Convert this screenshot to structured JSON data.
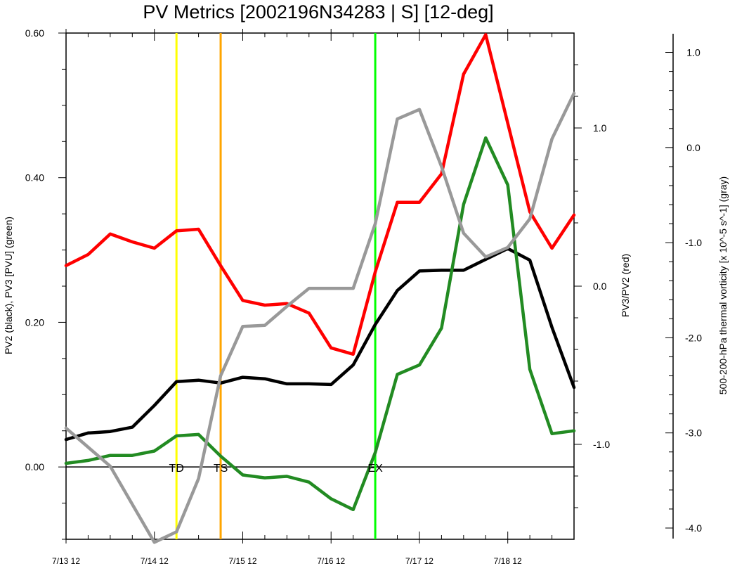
{
  "chart_data": {
    "type": "line",
    "title": "PV Metrics [2002196N34283 | S] [12-deg]",
    "xlabel": "",
    "ylabel_left": "PV2 (black), PV3 [PVU] (green)",
    "ylabel_right1": "PV3/PV2 (red)",
    "ylabel_right2": "500-200-hPa thermal vorticity [x 10^-5 s^-1] (gray)",
    "x_tick_labels": [
      "7/13 12",
      "7/14 12",
      "7/15 12",
      "7/16 12",
      "7/17 12",
      "7/18 12"
    ],
    "x_tick_positions": [
      0,
      4,
      8,
      12,
      16,
      20
    ],
    "xlim": [
      0,
      23
    ],
    "ylim_left": [
      -0.1,
      0.6
    ],
    "y_tick_labels_left": [
      "0.00",
      "0.20",
      "0.40",
      "0.60"
    ],
    "y_ticks_left": [
      0.0,
      0.2,
      0.4,
      0.6
    ],
    "ylim_right1": [
      -1.6,
      1.6
    ],
    "y_tick_labels_right1": [
      "-1.0",
      "0.0",
      "1.0"
    ],
    "y_ticks_right1": [
      -1.0,
      0.0,
      1.0
    ],
    "ylim_right2": [
      -4.0,
      1.1
    ],
    "y_tick_labels_right2": [
      "-4.0",
      "-3.0",
      "-2.0",
      "-1.0",
      "0.0",
      "1.0"
    ],
    "y_ticks_right2": [
      -4.0,
      -3.0,
      -2.0,
      -1.0,
      0.0,
      1.0
    ],
    "events": [
      {
        "label": "TD",
        "x": 5,
        "color": "#ffff00"
      },
      {
        "label": "TS",
        "x": 7,
        "color": "#ffa500"
      },
      {
        "label": "EX",
        "x": 14,
        "color": "#00ff00"
      }
    ],
    "x": [
      0,
      1,
      2,
      3,
      4,
      5,
      6,
      7,
      8,
      9,
      10,
      11,
      12,
      13,
      14,
      15,
      16,
      17,
      18,
      19,
      20,
      21,
      22,
      23
    ],
    "series": [
      {
        "axis": "left",
        "color": "#000000",
        "values": [
          0.038,
          0.047,
          0.049,
          0.055,
          0.085,
          0.118,
          0.12,
          0.116,
          0.124,
          0.122,
          0.115,
          0.115,
          0.114,
          0.141,
          0.197,
          0.244,
          0.271,
          0.272,
          0.272,
          0.287,
          0.302,
          0.286,
          0.193,
          0.11
        ]
      },
      {
        "axis": "left",
        "color": "#228b22",
        "values": [
          0.005,
          0.009,
          0.016,
          0.016,
          0.022,
          0.043,
          0.045,
          0.015,
          -0.011,
          -0.015,
          -0.013,
          -0.021,
          -0.044,
          -0.059,
          0.02,
          0.128,
          0.141,
          0.192,
          0.363,
          0.455,
          0.39,
          0.135,
          0.046,
          0.05
        ]
      },
      {
        "axis": "right1",
        "color": "#ff0000",
        "values": [
          0.13,
          0.2,
          0.33,
          0.28,
          0.24,
          0.35,
          0.36,
          0.13,
          -0.09,
          -0.12,
          -0.11,
          -0.17,
          -0.39,
          -0.43,
          0.09,
          0.53,
          0.53,
          0.71,
          1.34,
          1.59,
          1.03,
          0.47,
          0.24,
          0.45
        ]
      },
      {
        "axis": "right2",
        "color": "#999999",
        "values": [
          -2.95,
          -3.15,
          -3.35,
          -3.75,
          -4.15,
          -4.04,
          -3.48,
          -2.4,
          -1.88,
          -1.87,
          -1.67,
          -1.48,
          -1.48,
          -1.48,
          -0.8,
          0.3,
          0.4,
          -0.2,
          -0.9,
          -1.15,
          -1.05,
          -0.75,
          0.09,
          0.57
        ]
      }
    ]
  }
}
